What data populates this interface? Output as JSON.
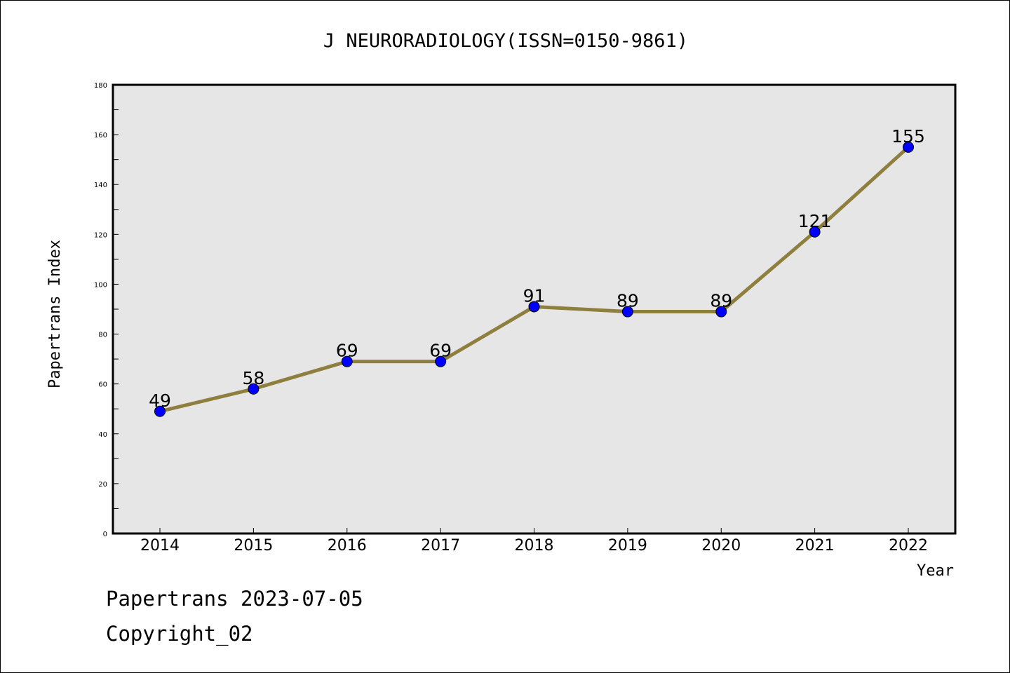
{
  "footer": {
    "line1": "Papertrans 2023-07-05",
    "line2": "Copyright_02"
  },
  "colors": {
    "plot_background": "#e6e6e6",
    "line": "#8f7f3f",
    "marker": "#0000ff"
  },
  "chart_data": {
    "type": "line",
    "title": "J NEURORADIOLOGY(ISSN=0150-9861)",
    "xlabel": "Year",
    "ylabel": "Papertrans Index",
    "categories": [
      "2014",
      "2015",
      "2016",
      "2017",
      "2018",
      "2019",
      "2020",
      "2021",
      "2022"
    ],
    "series": [
      {
        "values": [
          49,
          58,
          69,
          69,
          91,
          89,
          89,
          121,
          155
        ]
      }
    ],
    "ylim": [
      0,
      180
    ],
    "yticks": [
      0,
      20,
      40,
      60,
      80,
      100,
      120,
      140,
      160,
      180
    ],
    "data_labels": true,
    "grid": false
  }
}
